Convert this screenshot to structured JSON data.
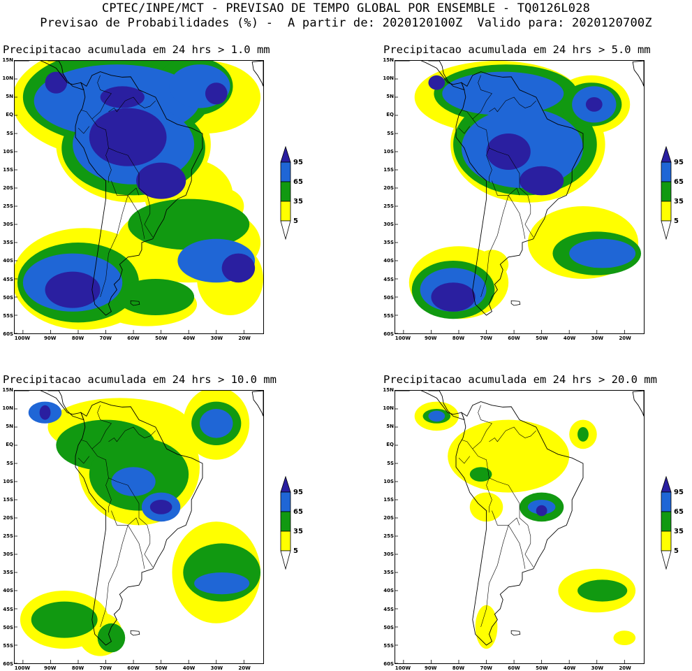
{
  "header": {
    "line1": "CPTEC/INPE/MCT - PREVISAO DE TEMPO GLOBAL POR ENSEMBLE - TQ0126L028",
    "line2": "Previsao de Probabilidades (%) -  A partir de: 2020120100Z  Valido para: 2020120700Z"
  },
  "colors": {
    "band_5": "#ffff00",
    "band_35": "#119911",
    "band_65": "#1f66d6",
    "band_95": "#2a1fa0",
    "coast": "#000000"
  },
  "legend": {
    "levels": [
      "95",
      "65",
      "35",
      "5"
    ]
  },
  "lat_ticks": [
    "15N",
    "10N",
    "5N",
    "EQ",
    "5S",
    "10S",
    "15S",
    "20S",
    "25S",
    "30S",
    "35S",
    "40S",
    "45S",
    "50S",
    "55S",
    "60S"
  ],
  "lon_ticks": [
    "100W",
    "90W",
    "80W",
    "70W",
    "60W",
    "50W",
    "40W",
    "30W",
    "20W"
  ],
  "panels": [
    {
      "title": "Precipitacao acumulada em 24 hrs > 1.0 mm",
      "threshold": 1.0
    },
    {
      "title": "Precipitacao acumulada em 24 hrs > 5.0 mm",
      "threshold": 5.0
    },
    {
      "title": "Precipitacao acumulada em 24 hrs > 10.0 mm",
      "threshold": 10.0
    },
    {
      "title": "Precipitacao acumulada em 24 hrs > 20.0 mm",
      "threshold": 20.0
    }
  ]
}
